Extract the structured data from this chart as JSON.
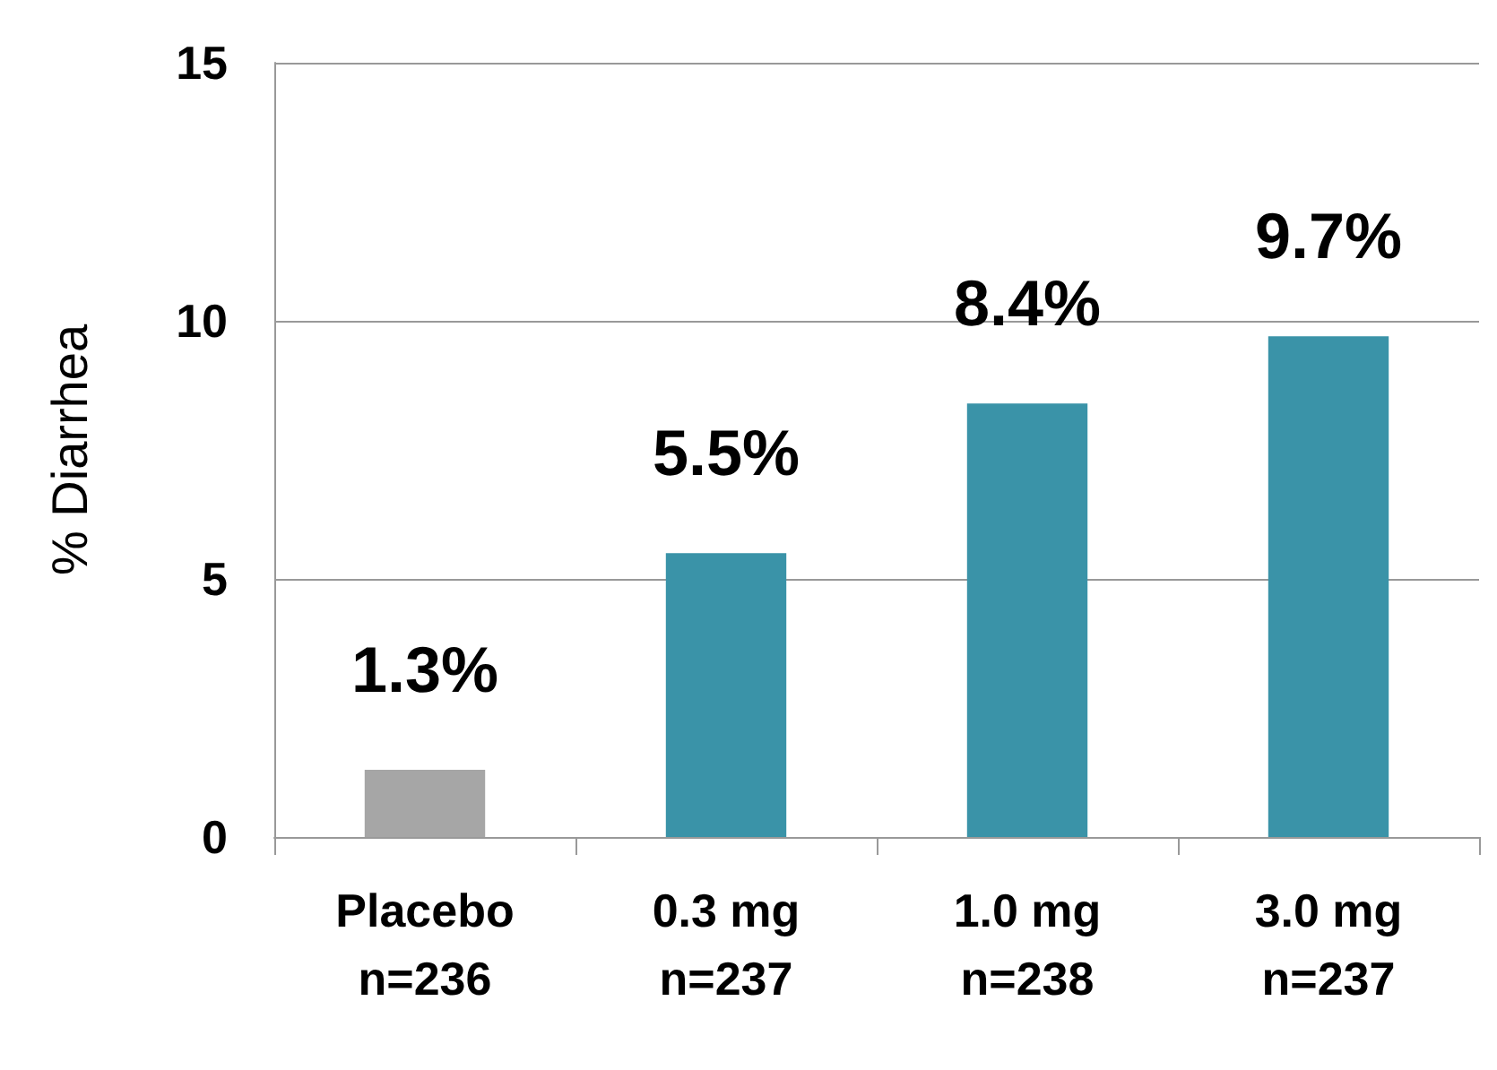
{
  "chart_data": {
    "type": "bar",
    "ylabel": "% Diarrhea",
    "categories": [
      "Placebo\nn=236",
      "0.3 mg\nn=237",
      "1.0 mg\nn=238",
      "3.0 mg\nn=237"
    ],
    "values": [
      1.3,
      5.5,
      8.4,
      9.7
    ],
    "colors": [
      "#a6a6a6",
      "#3a93a8",
      "#3a93a8",
      "#3a93a8"
    ],
    "value_labels": [
      "1.3%",
      "5.5%",
      "8.4%",
      "9.7%"
    ],
    "ylim": [
      0,
      15
    ],
    "yticks": [
      0,
      5,
      10,
      15
    ],
    "grid": "y"
  }
}
